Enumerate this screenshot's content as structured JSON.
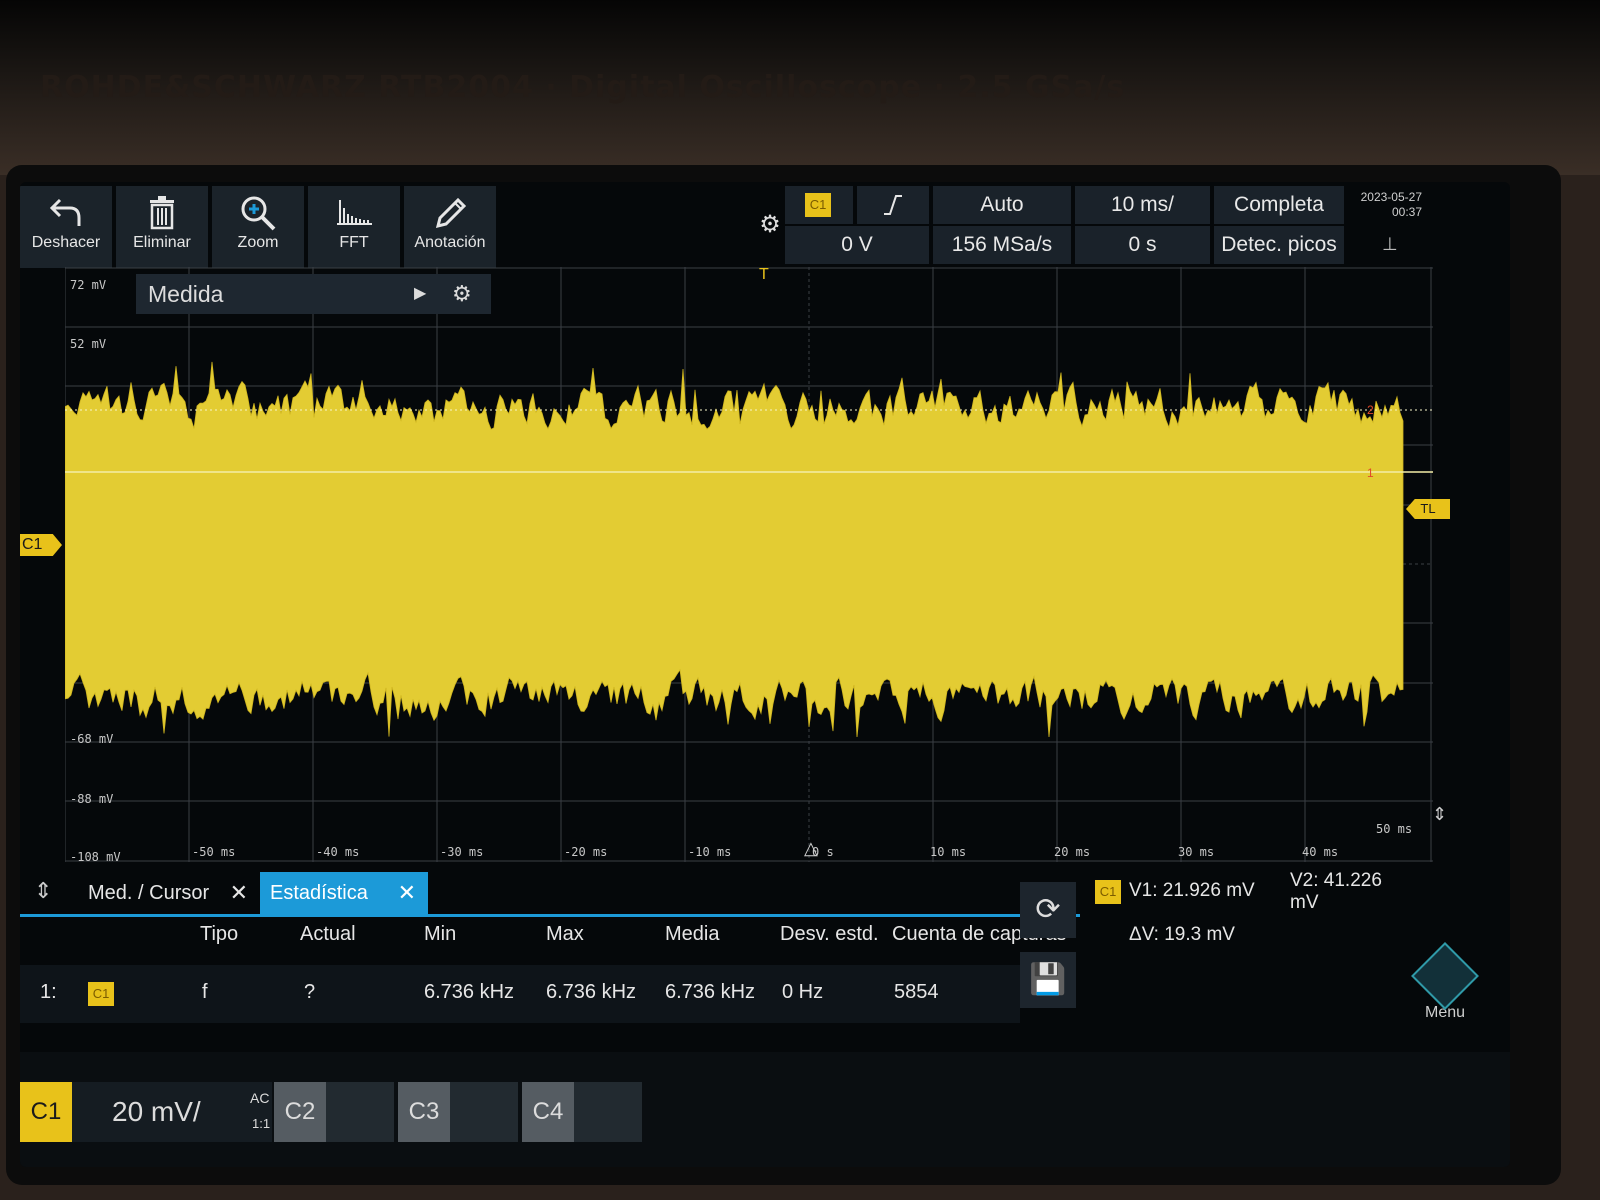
{
  "brand_text": "ROHDE&SCHWARZ   RTB2004 · Digital Oscilloscope · 2.5 GSa/s",
  "toolbar": {
    "undo_label": "Deshacer",
    "delete_label": "Eliminar",
    "zoom_label": "Zoom",
    "fft_label": "FFT",
    "annotation_label": "Anotación"
  },
  "header": {
    "source": "C1",
    "slope_icon": "rising-edge",
    "trigger_mode": "Auto",
    "time_scale": "10 ms/",
    "acq_mode": "Completa",
    "trigger_level": "0 V",
    "sample_rate": "156 MSa/s",
    "time_offset": "0 s",
    "detection": "Detec. picos",
    "date": "2023-05-27",
    "time": "00:37"
  },
  "measure_panel": {
    "title": "Medida"
  },
  "plot": {
    "y_labels": [
      "72 mV",
      "52 mV",
      "-68 mV",
      "-88 mV",
      "-108 mV"
    ],
    "x_labels": [
      "-50 ms",
      "-40 ms",
      "-30 ms",
      "-20 ms",
      "-10 ms",
      "0 s",
      "10 ms",
      "20 ms",
      "30 ms",
      "40 ms",
      "50 ms"
    ],
    "channel_marker": "C1",
    "trigger_level_marker": "TL",
    "trigger_marker": "T",
    "cursor_marker_1": "1",
    "cursor_marker_2": "2",
    "waveform_color": "#e3cc33"
  },
  "tabs": {
    "med_cursor": "Med. / Cursor",
    "estadistica": "Estadística"
  },
  "stats": {
    "headers": {
      "tipo": "Tipo",
      "actual": "Actual",
      "min": "Min",
      "max": "Max",
      "media": "Media",
      "desv": "Desv. estd.",
      "cuenta": "Cuenta de capturas"
    },
    "row": {
      "index": "1:",
      "source": "C1",
      "tipo": "f",
      "actual": "?",
      "min": "6.736 kHz",
      "max": "6.736 kHz",
      "media": "6.736 kHz",
      "desv": "0 Hz",
      "cuenta": "5854"
    }
  },
  "cursor": {
    "source": "C1",
    "v1": "V1: 21.926 mV",
    "v2": "V2: 41.226 mV",
    "dv": "ΔV: 19.3 mV"
  },
  "menu_label": "Menu",
  "channels": {
    "c1": "C1",
    "c1_scale": "20 mV/",
    "c1_coupling": "AC",
    "c1_ratio": "1:1",
    "c2": "C2",
    "c3": "C3",
    "c4": "C4"
  },
  "colors": {
    "accent": "#1c9ad8",
    "channel1": "#e8c21a"
  }
}
